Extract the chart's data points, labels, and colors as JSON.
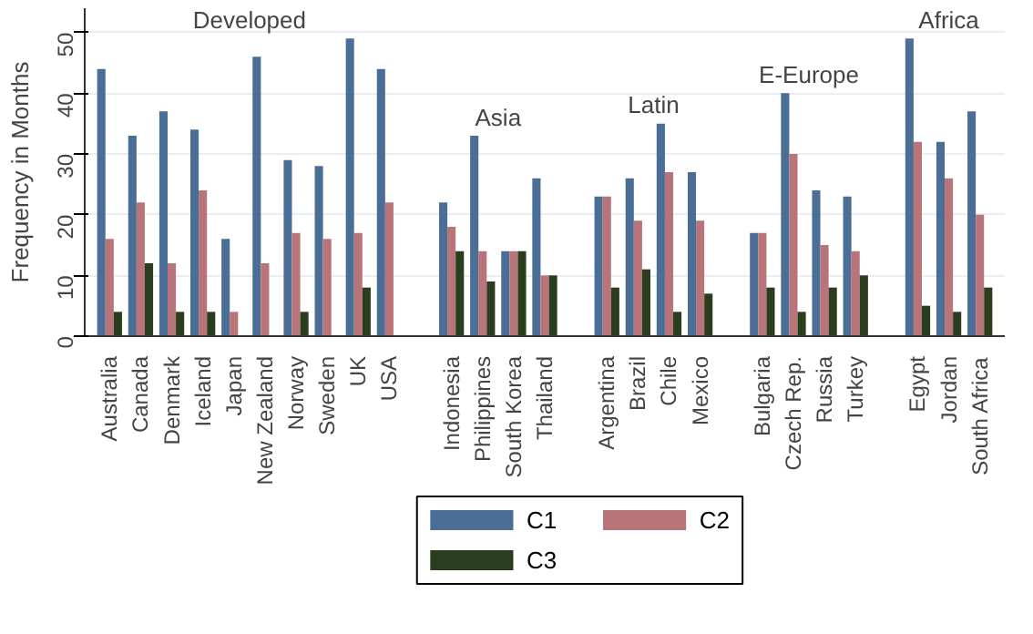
{
  "chart_data": {
    "type": "bar",
    "ylabel": "Frequency in Months",
    "categories": [
      "Australia",
      "Canada",
      "Denmark",
      "Iceland",
      "Japan",
      "New Zealand",
      "Norway",
      "Sweden",
      "UK",
      "USA",
      null,
      "Indonesia",
      "Philippines",
      "South Korea",
      "Thailand",
      null,
      "Argentina",
      "Brazil",
      "Chile",
      "Mexico",
      null,
      "Bulgaria",
      "Czech Rep.",
      "Russia",
      "Turkey",
      null,
      "Egypt",
      "Jordan",
      "South Africa"
    ],
    "series": [
      {
        "name": "C1",
        "color": "#4a6e96",
        "values": [
          44,
          33,
          37,
          34,
          16,
          46,
          29,
          28,
          49,
          44,
          null,
          22,
          33,
          14,
          26,
          null,
          23,
          26,
          35,
          27,
          null,
          17,
          40,
          24,
          23,
          null,
          49,
          32,
          37
        ]
      },
      {
        "name": "C2",
        "color": "#b97479",
        "values": [
          16,
          22,
          12,
          24,
          4,
          12,
          17,
          16,
          17,
          22,
          null,
          18,
          14,
          14,
          10,
          null,
          23,
          19,
          27,
          19,
          null,
          17,
          30,
          15,
          14,
          null,
          32,
          26,
          20
        ]
      },
      {
        "name": "C3",
        "color": "#2a3d1e",
        "values": [
          4,
          12,
          4,
          4,
          null,
          null,
          4,
          null,
          8,
          null,
          null,
          14,
          9,
          14,
          10,
          null,
          8,
          11,
          4,
          7,
          null,
          8,
          4,
          8,
          10,
          null,
          5,
          4,
          8
        ]
      }
    ],
    "annotations": [
      "Developed",
      "Asia",
      "Latin",
      "E-Europe",
      "Africa"
    ],
    "ylim": [
      0,
      54
    ],
    "yticks": [
      0,
      10,
      20,
      30,
      40,
      50
    ],
    "grid": "y",
    "legend": "bottom"
  }
}
